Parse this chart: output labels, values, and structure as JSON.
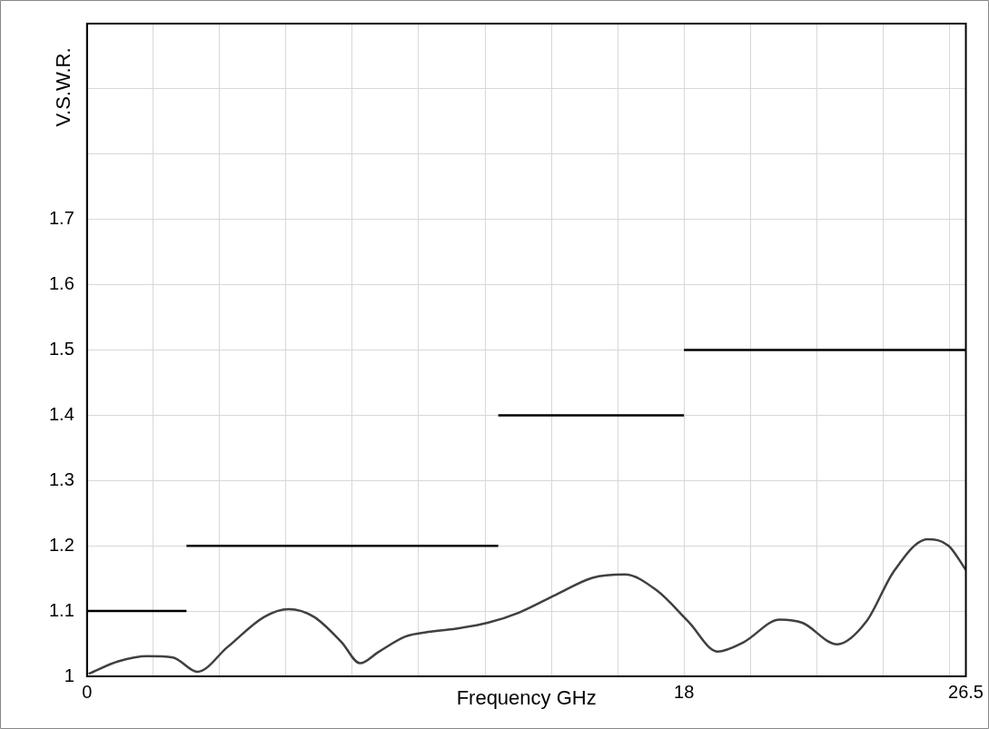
{
  "chart_data": {
    "type": "line",
    "xlabel": "Frequency GHz",
    "ylabel": "V.S.W.R.",
    "xlim": [
      0,
      26.5
    ],
    "ylim": [
      1,
      2
    ],
    "xticks": [
      0,
      {
        "value": 2,
        "label": null
      },
      {
        "value": 4,
        "label": null
      },
      {
        "value": 6,
        "label": null
      },
      {
        "value": 8,
        "label": null
      },
      {
        "value": 10,
        "label": null
      },
      {
        "value": 12,
        "label": null
      },
      {
        "value": 14,
        "label": null
      },
      {
        "value": 16,
        "label": null
      },
      18,
      {
        "value": 20,
        "label": null
      },
      {
        "value": 22,
        "label": null
      },
      {
        "value": 24,
        "label": null
      },
      {
        "value": 26,
        "label": null
      },
      26.5
    ],
    "yticks": [
      1,
      1.1,
      1.2,
      1.3,
      1.4,
      1.5,
      1.6,
      1.7,
      {
        "value": 1.8,
        "label": null
      },
      {
        "value": 1.9,
        "label": null
      },
      {
        "value": 2,
        "label": null
      }
    ],
    "grid": true,
    "legend": false,
    "marker": "none",
    "series": [
      {
        "color": "#404040",
        "x": [
          0.05,
          0.94,
          1.82,
          2.59,
          3.33,
          4.24,
          5.34,
          6.08,
          6.85,
          7.68,
          8.23,
          8.78,
          9.6,
          10.29,
          11.12,
          12.08,
          13.04,
          14.14,
          15.24,
          16.21,
          17.17,
          18.13,
          19.01,
          19.79,
          20.89,
          21.57,
          22.62,
          23.5,
          24.33,
          25.34,
          25.98,
          26.5
        ],
        "values": [
          1.004,
          1.023,
          1.031,
          1.029,
          1.007,
          1.045,
          1.091,
          1.103,
          1.091,
          1.052,
          1.02,
          1.037,
          1.061,
          1.068,
          1.073,
          1.082,
          1.098,
          1.125,
          1.151,
          1.156,
          1.132,
          1.084,
          1.038,
          1.052,
          1.087,
          1.082,
          1.049,
          1.084,
          1.161,
          1.21,
          1.2,
          1.163
        ]
      },
      {
        "color": "#000000",
        "x": [
          0,
          3
        ],
        "values": [
          1.1,
          1.1
        ]
      },
      {
        "color": "#000000",
        "x": [
          3,
          12.4
        ],
        "values": [
          1.2,
          1.2
        ]
      },
      {
        "color": "#000000",
        "x": [
          12.4,
          18
        ],
        "values": [
          1.4,
          1.4
        ]
      },
      {
        "color": "#000000",
        "x": [
          18,
          26.5
        ],
        "values": [
          1.5,
          1.5
        ]
      }
    ]
  }
}
